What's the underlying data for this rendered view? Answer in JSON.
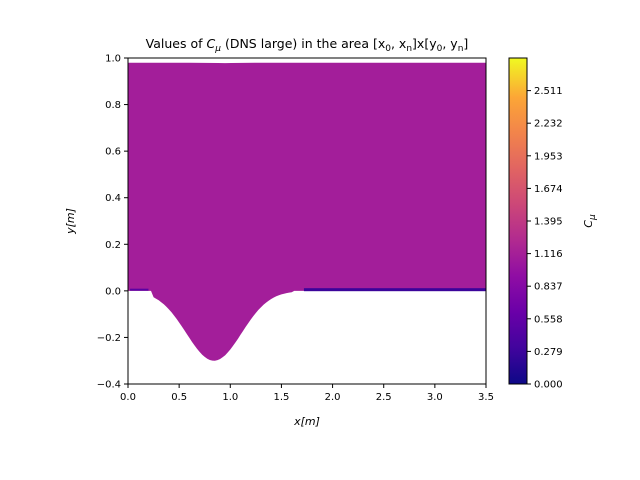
{
  "chart_data": {
    "type": "heatmap",
    "title": "Values of C_μ (DNS large) in the area [x_0, x_n]x[y_0, y_n]",
    "title_parts": {
      "pre": "Values of ",
      "sym": "C",
      "sub": "μ",
      "mid": " (DNS large) in the area ",
      "range": "[x",
      "r0": "0",
      "comma1": ", x",
      "rn": "n",
      "close1": "]x[y",
      "r2": "0",
      "comma2": ", y",
      "r3": "n",
      "close2": "]"
    },
    "xlabel": "x[m]",
    "ylabel": "y[m]",
    "colorbar_label": "C_μ",
    "colorbar_label_parts": {
      "sym": "C",
      "sub": "μ"
    },
    "xlim": [
      0.0,
      3.5
    ],
    "ylim": [
      -0.4,
      1.0
    ],
    "x_ticks": [
      "0.0",
      "0.5",
      "1.0",
      "1.5",
      "2.0",
      "2.5",
      "3.0",
      "3.5"
    ],
    "y_ticks": [
      "−0.4",
      "−0.2",
      "0.0",
      "0.2",
      "0.4",
      "0.6",
      "0.8",
      "1.0"
    ],
    "colorbar_range": [
      0.0,
      2.79
    ],
    "colorbar_ticks": [
      "0.000",
      "0.279",
      "0.558",
      "0.837",
      "1.116",
      "1.395",
      "1.674",
      "1.953",
      "2.232",
      "2.511"
    ],
    "colormap": "plasma",
    "field": {
      "dominant_value": 0.98,
      "dominant_color": "#a31e9a",
      "low_value_band": {
        "x_range": [
          1.72,
          3.5
        ],
        "y": 0.005,
        "value": 0.35
      },
      "top_y": 0.98,
      "hill": {
        "x_min": 0.25,
        "x_max": 1.6,
        "bottom_y": -0.3,
        "center_x": 0.84
      }
    },
    "grid": false
  }
}
